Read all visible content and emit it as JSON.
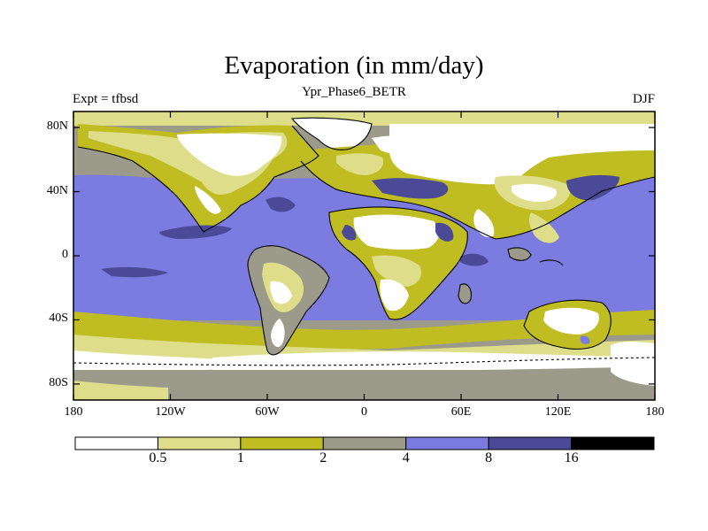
{
  "map": {
    "title": "Evaporation (in mm/day)",
    "subtitle": "Ypr_Phase6_BETR",
    "left_string": "Expt = tfbsd",
    "right_string": "DJF",
    "projection": "cylindrical-equidistant",
    "lat_ticks": [
      {
        "label": "80N",
        "lat": 80
      },
      {
        "label": "40N",
        "lat": 40
      },
      {
        "label": "0",
        "lat": 0
      },
      {
        "label": "40S",
        "lat": -40
      },
      {
        "label": "80S",
        "lat": -80
      }
    ],
    "lon_ticks": [
      {
        "label": "180",
        "lon": -180
      },
      {
        "label": "120W",
        "lon": -120
      },
      {
        "label": "60W",
        "lon": -60
      },
      {
        "label": "0",
        "lon": 0
      },
      {
        "label": "60E",
        "lon": 60
      },
      {
        "label": "120E",
        "lon": 120
      },
      {
        "label": "180",
        "lon": 180
      }
    ]
  },
  "colorbar": {
    "levels": [
      "0.5",
      "1",
      "2",
      "4",
      "8",
      "16"
    ],
    "colors": [
      "#ffffff",
      "#dede8a",
      "#bfbd22",
      "#9c9a8a",
      "#7b7be0",
      "#4a4a96",
      "#000000"
    ]
  }
}
